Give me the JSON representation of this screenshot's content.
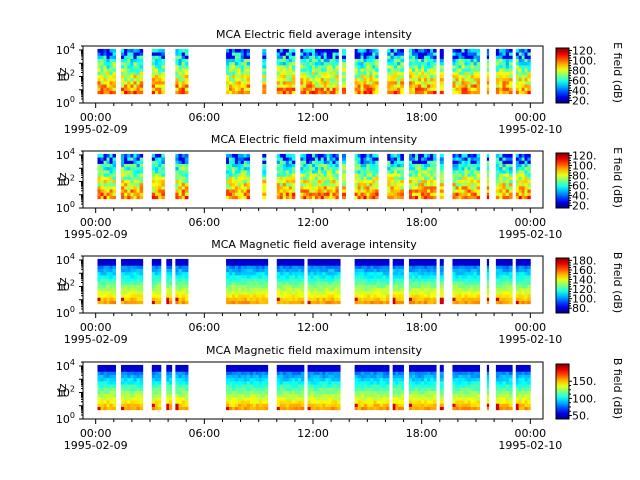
{
  "chart_data": [
    {
      "type": "heatmap",
      "title": "MCA  Electric field average intensity",
      "ylabel": "Hz",
      "y_scale": "log",
      "ylim": [
        1,
        20000
      ],
      "y_ticks": [
        {
          "value": 1,
          "base": "10",
          "exp": "0"
        },
        {
          "value": 100,
          "base": "10",
          "exp": "2"
        },
        {
          "value": 10000,
          "base": "10",
          "exp": "4"
        }
      ],
      "x_ticks": [
        {
          "hour": 0,
          "time": "00:00",
          "date": "1995-02-09"
        },
        {
          "hour": 6,
          "time": "06:00",
          "date": ""
        },
        {
          "hour": 12,
          "time": "12:00",
          "date": ""
        },
        {
          "hour": 18,
          "time": "18:00",
          "date": ""
        },
        {
          "hour": 24,
          "time": "00:00",
          "date": "1995-02-10"
        }
      ],
      "colorbar": {
        "label": "E field (dB)",
        "ticks": [
          "20.",
          "40.",
          "60.",
          "80.",
          "100.",
          "120."
        ],
        "tick_values": [
          20,
          40,
          60,
          80,
          100,
          120
        ],
        "range": [
          15,
          125
        ]
      },
      "data_intervals_hours": [
        [
          0.1,
          1.1
        ],
        [
          1.4,
          2.6
        ],
        [
          3.1,
          3.8
        ],
        [
          4.4,
          5.1
        ],
        [
          7.2,
          8.5
        ],
        [
          9.2,
          9.4
        ],
        [
          10.0,
          11.0
        ],
        [
          11.3,
          13.4
        ],
        [
          13.6,
          13.8
        ],
        [
          14.3,
          15.6
        ],
        [
          16.1,
          17.0
        ],
        [
          17.3,
          18.8
        ],
        [
          19.0,
          19.2
        ],
        [
          19.7,
          21.2
        ],
        [
          21.6,
          21.7
        ],
        [
          22.1,
          23.0
        ],
        [
          23.2,
          24.0
        ]
      ],
      "low_freq_hz": 5
    },
    {
      "type": "heatmap",
      "title": "MCA  Electric field maximum intensity",
      "ylabel": "Hz",
      "y_scale": "log",
      "ylim": [
        1,
        20000
      ],
      "y_ticks": [
        {
          "value": 1,
          "base": "10",
          "exp": "0"
        },
        {
          "value": 100,
          "base": "10",
          "exp": "2"
        },
        {
          "value": 10000,
          "base": "10",
          "exp": "4"
        }
      ],
      "x_ticks": [
        {
          "hour": 0,
          "time": "00:00",
          "date": "1995-02-09"
        },
        {
          "hour": 6,
          "time": "06:00",
          "date": ""
        },
        {
          "hour": 12,
          "time": "12:00",
          "date": ""
        },
        {
          "hour": 18,
          "time": "18:00",
          "date": ""
        },
        {
          "hour": 24,
          "time": "00:00",
          "date": "1995-02-10"
        }
      ],
      "colorbar": {
        "label": "E field (dB)",
        "ticks": [
          "20.",
          "40.",
          "60.",
          "80.",
          "100.",
          "120."
        ],
        "tick_values": [
          20,
          40,
          60,
          80,
          100,
          120
        ],
        "range": [
          15,
          125
        ]
      },
      "data_intervals_hours": [
        [
          0.1,
          1.1
        ],
        [
          1.4,
          2.6
        ],
        [
          3.1,
          3.8
        ],
        [
          4.4,
          5.1
        ],
        [
          7.2,
          8.5
        ],
        [
          9.2,
          9.4
        ],
        [
          10.0,
          11.0
        ],
        [
          11.3,
          13.4
        ],
        [
          13.6,
          13.8
        ],
        [
          14.3,
          15.6
        ],
        [
          16.1,
          17.0
        ],
        [
          17.3,
          18.8
        ],
        [
          19.0,
          19.2
        ],
        [
          19.7,
          21.2
        ],
        [
          21.6,
          21.7
        ],
        [
          22.1,
          23.0
        ],
        [
          23.2,
          24.0
        ]
      ],
      "low_freq_hz": 5
    },
    {
      "type": "heatmap",
      "title": "MCA  Magnetic field average intensity",
      "ylabel": "Hz",
      "y_scale": "log",
      "ylim": [
        1,
        20000
      ],
      "y_ticks": [
        {
          "value": 1,
          "base": "10",
          "exp": "0"
        },
        {
          "value": 100,
          "base": "10",
          "exp": "2"
        },
        {
          "value": 10000,
          "base": "10",
          "exp": "4"
        }
      ],
      "x_ticks": [
        {
          "hour": 0,
          "time": "00:00",
          "date": "1995-02-09"
        },
        {
          "hour": 6,
          "time": "06:00",
          "date": ""
        },
        {
          "hour": 12,
          "time": "12:00",
          "date": ""
        },
        {
          "hour": 18,
          "time": "18:00",
          "date": ""
        },
        {
          "hour": 24,
          "time": "00:00",
          "date": "1995-02-10"
        }
      ],
      "colorbar": {
        "label": "B field (dB)",
        "ticks": [
          "80.",
          "100.",
          "120.",
          "140.",
          "160.",
          "180."
        ],
        "tick_values": [
          80,
          100,
          120,
          140,
          160,
          180
        ],
        "range": [
          70,
          185
        ]
      },
      "data_intervals_hours": [
        [
          0.1,
          1.1
        ],
        [
          1.4,
          2.6
        ],
        [
          3.1,
          3.6
        ],
        [
          3.9,
          4.2
        ],
        [
          4.4,
          5.1
        ],
        [
          7.2,
          9.5
        ],
        [
          10.0,
          11.5
        ],
        [
          11.7,
          13.5
        ],
        [
          14.3,
          16.2
        ],
        [
          16.4,
          17.0
        ],
        [
          17.3,
          18.8
        ],
        [
          19.0,
          19.2
        ],
        [
          19.7,
          21.2
        ],
        [
          21.6,
          21.7
        ],
        [
          22.1,
          23.0
        ],
        [
          23.2,
          24.0
        ]
      ],
      "low_freq_hz": 5
    },
    {
      "type": "heatmap",
      "title": "MCA  Magnetic field maximum intensity",
      "ylabel": "Hz",
      "y_scale": "log",
      "ylim": [
        1,
        20000
      ],
      "y_ticks": [
        {
          "value": 1,
          "base": "10",
          "exp": "0"
        },
        {
          "value": 100,
          "base": "10",
          "exp": "2"
        },
        {
          "value": 10000,
          "base": "10",
          "exp": "4"
        }
      ],
      "x_ticks": [
        {
          "hour": 0,
          "time": "00:00",
          "date": "1995-02-09"
        },
        {
          "hour": 6,
          "time": "06:00",
          "date": ""
        },
        {
          "hour": 12,
          "time": "12:00",
          "date": ""
        },
        {
          "hour": 18,
          "time": "18:00",
          "date": ""
        },
        {
          "hour": 24,
          "time": "00:00",
          "date": "1995-02-10"
        }
      ],
      "colorbar": {
        "label": "B field (dB)",
        "ticks": [
          "50.",
          "100.",
          "150."
        ],
        "tick_values": [
          50,
          100,
          150
        ],
        "range": [
          40,
          200
        ]
      },
      "data_intervals_hours": [
        [
          0.1,
          1.1
        ],
        [
          1.4,
          2.6
        ],
        [
          3.1,
          3.6
        ],
        [
          3.9,
          4.2
        ],
        [
          4.4,
          5.1
        ],
        [
          7.2,
          9.5
        ],
        [
          10.0,
          11.5
        ],
        [
          11.7,
          13.5
        ],
        [
          14.3,
          16.2
        ],
        [
          16.4,
          17.0
        ],
        [
          17.3,
          18.8
        ],
        [
          19.0,
          19.2
        ],
        [
          19.7,
          21.2
        ],
        [
          21.6,
          21.7
        ],
        [
          22.1,
          23.0
        ],
        [
          23.2,
          24.0
        ]
      ],
      "low_freq_hz": 5
    }
  ]
}
